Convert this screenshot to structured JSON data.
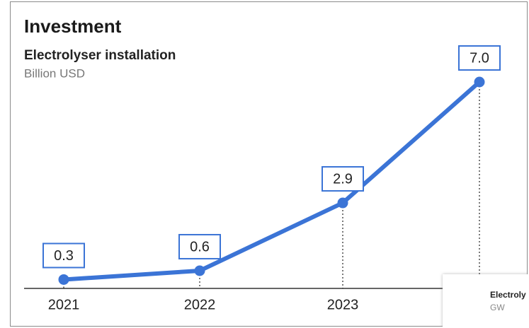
{
  "chart_data": {
    "type": "line",
    "title": "Investment",
    "subtitle": "Electrolyser installation",
    "unit": "Billion USD",
    "categories": [
      "2021",
      "2022",
      "2023",
      null
    ],
    "series": [
      {
        "name": "Electrolyser installation",
        "color": "#3b74d6",
        "values": [
          0.3,
          0.6,
          2.9,
          7.0
        ],
        "value_labels": [
          "0.3",
          "0.6",
          "2.9",
          "7.0"
        ]
      }
    ]
  },
  "overlay_card": {
    "title": "Electroly",
    "subtitle": "GW"
  }
}
